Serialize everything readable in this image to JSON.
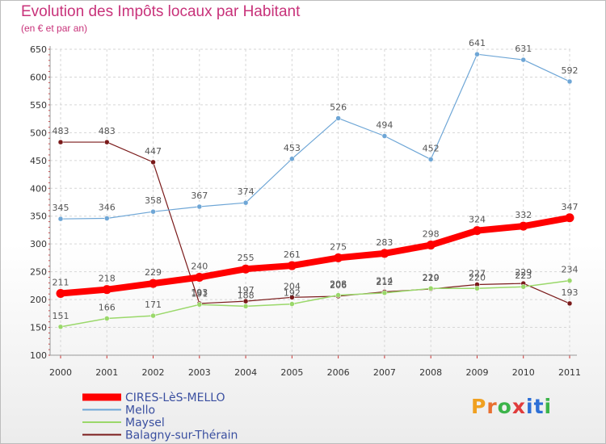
{
  "title": "Evolution des Impôts locaux par Habitant",
  "subtitle": "(en € et par an)",
  "logo": {
    "letters": [
      "P",
      "r",
      "o",
      "x",
      "i",
      "t",
      "i"
    ],
    "colors": [
      "#f0a020",
      "#e87030",
      "#3cb44a",
      "#e03c3c",
      "#2d6fd6",
      "#2d6fd6",
      "#3cb44a"
    ]
  },
  "chart_data": {
    "type": "line",
    "title": "Evolution des Impôts locaux par Habitant",
    "subtitle": "(en € et par an)",
    "xlabel": "",
    "ylabel": "",
    "ylim": [
      100,
      650
    ],
    "yticks": [
      100,
      150,
      200,
      250,
      300,
      350,
      400,
      450,
      500,
      550,
      600,
      650
    ],
    "categories": [
      "2000",
      "2001",
      "2002",
      "2003",
      "2004",
      "2005",
      "2006",
      "2007",
      "2008",
      "2009",
      "2010",
      "2011"
    ],
    "grid": true,
    "legend": "bottom-left",
    "series": [
      {
        "name": "Balagny-sur-Thérain",
        "color": "#7a1a1a",
        "width": 1.2,
        "values": [
          483,
          483,
          447,
          193,
          197,
          204,
          206,
          214,
          219,
          227,
          229,
          193
        ],
        "labels": [
          "483",
          "483",
          "447",
          "193",
          "197",
          "204",
          "206",
          "214",
          "219",
          "227",
          "229",
          "193"
        ]
      },
      {
        "name": "Maysel",
        "color": "#9ad86a",
        "width": 1.5,
        "values": [
          151,
          166,
          171,
          191,
          188,
          192,
          208,
          212,
          220,
          220,
          223,
          234
        ],
        "labels": [
          "151",
          "166",
          "171",
          "191",
          "188",
          "192",
          "208",
          "212",
          "220",
          "220",
          "223",
          "234"
        ]
      },
      {
        "name": "Mello",
        "color": "#6ea6d6",
        "width": 1.2,
        "values": [
          345,
          346,
          358,
          367,
          374,
          453,
          526,
          494,
          452,
          641,
          631,
          592
        ],
        "labels": [
          "345",
          "346",
          "358",
          "367",
          "374",
          "453",
          "526",
          "494",
          "452",
          "641",
          "631",
          "592"
        ]
      },
      {
        "name": "CIRES-LèS-MELLO",
        "color": "#ff0000",
        "width": 8,
        "values": [
          211,
          218,
          229,
          240,
          255,
          261,
          275,
          283,
          298,
          324,
          332,
          347
        ],
        "labels": [
          "211",
          "218",
          "229",
          "240",
          "255",
          "261",
          "275",
          "283",
          "298",
          "324",
          "332",
          "347"
        ]
      }
    ],
    "legend_order": [
      "CIRES-LèS-MELLO",
      "Mello",
      "Maysel",
      "Balagny-sur-Thérain"
    ]
  }
}
